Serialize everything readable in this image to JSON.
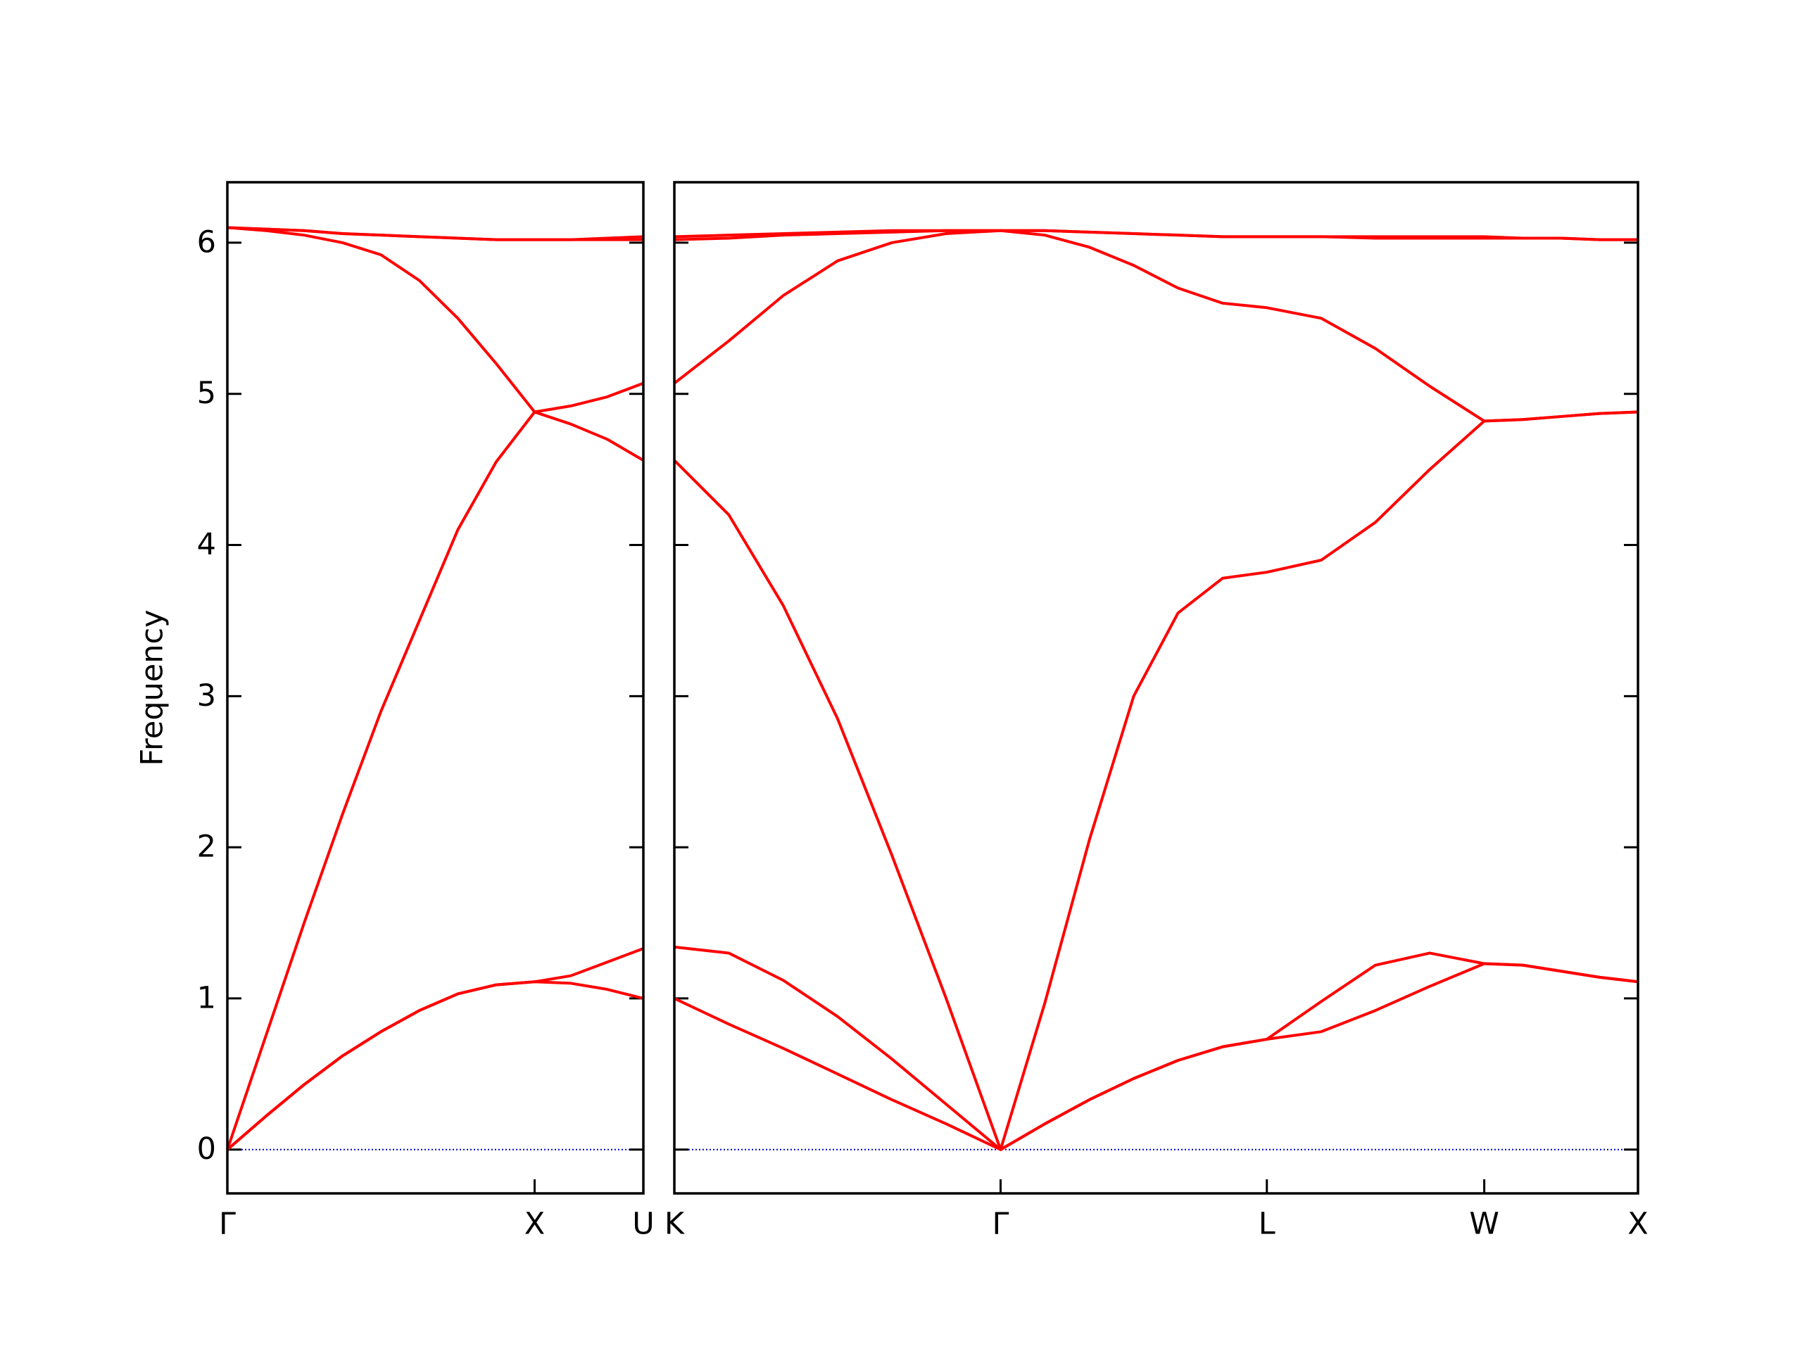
{
  "chart_data": [
    {
      "type": "line",
      "ylabel": "Frequency",
      "ytick_labels": true,
      "zero_line_color": "#0000cc",
      "x": [
        0,
        0.125,
        0.25,
        0.375,
        0.5,
        0.625,
        0.75,
        0.875,
        1.0,
        1.118,
        1.236,
        1.354
      ],
      "xlim": [
        0,
        1.354
      ],
      "xticks": [
        {
          "value": 0,
          "label": "Γ"
        },
        {
          "value": 1.0,
          "label": "X"
        },
        {
          "value": 1.354,
          "label": "U"
        }
      ],
      "ylim": [
        -0.29,
        6.4
      ],
      "yticks": [
        0,
        1,
        2,
        3,
        4,
        5,
        6
      ],
      "series": [
        {
          "color": "#ff0000",
          "values": [
            0,
            0.22,
            0.43,
            0.62,
            0.78,
            0.92,
            1.03,
            1.09,
            1.11,
            1.1,
            1.06,
            1.0
          ]
        },
        {
          "color": "#ff0000",
          "values": [
            0,
            0.22,
            0.43,
            0.62,
            0.78,
            0.92,
            1.03,
            1.09,
            1.11,
            1.15,
            1.24,
            1.33
          ]
        },
        {
          "color": "#ff0000",
          "values": [
            0,
            0.75,
            1.5,
            2.22,
            2.9,
            3.5,
            4.1,
            4.55,
            4.88,
            4.8,
            4.7,
            4.56
          ]
        },
        {
          "color": "#ff0000",
          "values": [
            6.1,
            6.08,
            6.05,
            6.0,
            5.92,
            5.75,
            5.5,
            5.2,
            4.88,
            4.92,
            4.98,
            5.07
          ]
        },
        {
          "color": "#ff0000",
          "values": [
            6.1,
            6.09,
            6.08,
            6.06,
            6.05,
            6.04,
            6.03,
            6.02,
            6.02,
            6.02,
            6.03,
            6.04
          ]
        },
        {
          "color": "#ff0000",
          "values": [
            6.1,
            6.09,
            6.08,
            6.06,
            6.05,
            6.04,
            6.03,
            6.02,
            6.02,
            6.02,
            6.02,
            6.02
          ]
        }
      ]
    },
    {
      "type": "line",
      "ytick_labels": false,
      "zero_line_color": "#0000cc",
      "x": [
        1.354,
        1.531,
        1.708,
        1.885,
        2.061,
        2.238,
        2.415,
        2.559,
        2.704,
        2.848,
        2.992,
        3.137,
        3.281,
        3.458,
        3.634,
        3.811,
        3.988,
        4.113,
        4.238,
        4.363,
        4.488
      ],
      "xlim": [
        1.354,
        4.488
      ],
      "xticks": [
        {
          "value": 1.354,
          "label": "K"
        },
        {
          "value": 2.415,
          "label": "Γ"
        },
        {
          "value": 3.281,
          "label": "L"
        },
        {
          "value": 3.988,
          "label": "W"
        },
        {
          "value": 4.488,
          "label": "X"
        }
      ],
      "ylim": [
        -0.29,
        6.4
      ],
      "yticks": [
        0,
        1,
        2,
        3,
        4,
        5,
        6
      ],
      "series": [
        {
          "color": "#ff0000",
          "values": [
            1.0,
            0.83,
            0.67,
            0.5,
            0.33,
            0.17,
            0,
            0.17,
            0.33,
            0.47,
            0.59,
            0.68,
            0.73,
            0.78,
            0.92,
            1.08,
            1.23,
            1.22,
            1.18,
            1.14,
            1.11
          ]
        },
        {
          "color": "#ff0000",
          "values": [
            1.34,
            1.3,
            1.12,
            0.88,
            0.6,
            0.3,
            0,
            0.17,
            0.33,
            0.47,
            0.59,
            0.68,
            0.73,
            0.98,
            1.22,
            1.3,
            1.23,
            1.22,
            1.18,
            1.14,
            1.11
          ]
        },
        {
          "color": "#ff0000",
          "values": [
            4.56,
            4.2,
            3.6,
            2.85,
            1.95,
            1.0,
            0,
            0.97,
            2.05,
            3.0,
            3.55,
            3.78,
            3.82,
            3.9,
            4.15,
            4.5,
            4.82,
            4.83,
            4.85,
            4.87,
            4.88
          ]
        },
        {
          "color": "#ff0000",
          "values": [
            5.07,
            5.35,
            5.65,
            5.88,
            6.0,
            6.06,
            6.08,
            6.05,
            5.97,
            5.85,
            5.7,
            5.6,
            5.57,
            5.5,
            5.3,
            5.05,
            4.82,
            4.83,
            4.85,
            4.87,
            4.88
          ]
        },
        {
          "color": "#ff0000",
          "values": [
            6.04,
            6.05,
            6.06,
            6.07,
            6.08,
            6.08,
            6.08,
            6.08,
            6.07,
            6.06,
            6.05,
            6.04,
            6.04,
            6.04,
            6.04,
            6.04,
            6.04,
            6.03,
            6.03,
            6.02,
            6.02
          ]
        },
        {
          "color": "#ff0000",
          "values": [
            6.02,
            6.03,
            6.05,
            6.06,
            6.07,
            6.08,
            6.08,
            6.08,
            6.07,
            6.06,
            6.05,
            6.04,
            6.04,
            6.04,
            6.03,
            6.03,
            6.03,
            6.03,
            6.03,
            6.02,
            6.02
          ]
        }
      ]
    }
  ]
}
